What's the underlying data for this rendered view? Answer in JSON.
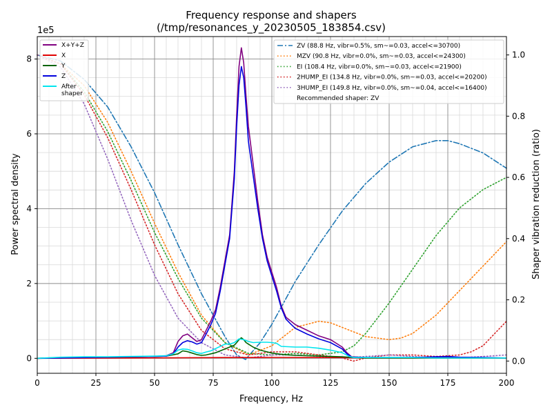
{
  "chart_data": {
    "type": "line",
    "title": "Frequency response and shapers",
    "subtitle": "(/tmp/resonances_y_20230505_183854.csv)",
    "xlabel": "Frequency, Hz",
    "ylabel": "Power spectral density",
    "y2label": "Shaper vibration reduction (ratio)",
    "y_offset_label": "1e5",
    "xlim": [
      0,
      200
    ],
    "ylim": [
      -0.4,
      8.6
    ],
    "y2lim": [
      -0.04,
      1.06
    ],
    "xticks": [
      0,
      25,
      50,
      75,
      100,
      125,
      150,
      175,
      200
    ],
    "yticks": [
      0,
      2,
      4,
      6,
      8
    ],
    "y2ticks": [
      0.0,
      0.2,
      0.4,
      0.6,
      0.8,
      1.0
    ],
    "grid": true,
    "legend_left_position": "top-left",
    "legend_right_position": "top-right",
    "psd_series": [
      {
        "name": "X+Y+Z",
        "color": "#800080",
        "x": [
          0,
          10,
          20,
          30,
          40,
          50,
          55,
          58,
          60,
          62,
          64,
          66,
          68,
          70,
          72,
          74,
          76,
          78,
          80,
          82,
          84,
          85,
          86,
          87,
          88,
          89,
          90,
          92,
          94,
          96,
          98,
          100,
          102,
          104,
          106,
          108,
          110,
          115,
          120,
          125,
          130,
          132,
          134,
          140,
          150,
          160,
          170,
          180,
          190,
          200
        ],
        "y": [
          0,
          0.01,
          0.02,
          0.03,
          0.04,
          0.05,
          0.07,
          0.15,
          0.45,
          0.6,
          0.65,
          0.55,
          0.45,
          0.5,
          0.75,
          1.0,
          1.3,
          1.9,
          2.6,
          3.3,
          5.0,
          6.5,
          7.8,
          8.3,
          7.9,
          7.0,
          6.2,
          5.2,
          4.2,
          3.3,
          2.7,
          2.3,
          1.9,
          1.4,
          1.1,
          1.0,
          0.9,
          0.75,
          0.6,
          0.5,
          0.3,
          0.15,
          0.04,
          0.02,
          0.02,
          0.02,
          0.02,
          0.02,
          0.01,
          0.01
        ]
      },
      {
        "name": "X",
        "color": "#e00000",
        "x": [
          0,
          20,
          40,
          60,
          80,
          100,
          120,
          130,
          140,
          160,
          180,
          200
        ],
        "y": [
          0,
          0.005,
          0.01,
          0.015,
          0.02,
          0.025,
          0.02,
          0.02,
          0.01,
          0.01,
          0.01,
          0.01
        ]
      },
      {
        "name": "Y",
        "color": "#006400",
        "x": [
          0,
          10,
          20,
          30,
          40,
          50,
          55,
          60,
          62,
          64,
          66,
          68,
          70,
          72,
          74,
          76,
          78,
          80,
          82,
          84,
          85,
          86,
          87,
          88,
          89,
          90,
          92,
          95,
          100,
          105,
          110,
          120,
          130,
          135,
          140,
          160,
          200
        ],
        "y": [
          0,
          0.02,
          0.03,
          0.03,
          0.04,
          0.05,
          0.06,
          0.12,
          0.2,
          0.18,
          0.14,
          0.1,
          0.08,
          0.09,
          0.12,
          0.15,
          0.2,
          0.25,
          0.3,
          0.35,
          0.42,
          0.5,
          0.55,
          0.5,
          0.42,
          0.38,
          0.3,
          0.22,
          0.14,
          0.1,
          0.08,
          0.06,
          0.04,
          0.02,
          0.01,
          0.01,
          0.01
        ]
      },
      {
        "name": "Z",
        "color": "#0000dd",
        "x": [
          0,
          10,
          20,
          30,
          40,
          50,
          55,
          58,
          60,
          62,
          64,
          66,
          68,
          70,
          72,
          74,
          76,
          78,
          80,
          82,
          84,
          85,
          86,
          87,
          88,
          89,
          90,
          92,
          94,
          96,
          98,
          100,
          102,
          104,
          106,
          108,
          110,
          115,
          120,
          125,
          130,
          132,
          134,
          140,
          150,
          160,
          170,
          175,
          180,
          190,
          200
        ],
        "y": [
          0,
          0.01,
          0.02,
          0.03,
          0.04,
          0.05,
          0.06,
          0.12,
          0.3,
          0.42,
          0.47,
          0.44,
          0.38,
          0.42,
          0.65,
          0.9,
          1.2,
          1.8,
          2.5,
          3.2,
          4.8,
          6.2,
          7.3,
          7.8,
          7.5,
          6.7,
          5.8,
          4.9,
          4.0,
          3.2,
          2.6,
          2.2,
          1.8,
          1.35,
          1.05,
          0.92,
          0.8,
          0.65,
          0.52,
          0.42,
          0.25,
          0.12,
          0.03,
          0.02,
          0.02,
          0.02,
          0.04,
          0.05,
          0.03,
          0.02,
          0.01
        ]
      },
      {
        "name": "After\nshaper",
        "color": "#00e5ee",
        "x": [
          0,
          10,
          20,
          30,
          40,
          50,
          55,
          58,
          60,
          62,
          64,
          66,
          68,
          70,
          72,
          74,
          76,
          78,
          80,
          82,
          84,
          86,
          88,
          90,
          92,
          95,
          98,
          100,
          102,
          104,
          110,
          115,
          120,
          125,
          130,
          133,
          135,
          140,
          150,
          160,
          170,
          180,
          190,
          200
        ],
        "y": [
          0,
          0.03,
          0.04,
          0.04,
          0.05,
          0.06,
          0.07,
          0.12,
          0.22,
          0.25,
          0.24,
          0.2,
          0.15,
          0.13,
          0.17,
          0.2,
          0.26,
          0.32,
          0.38,
          0.38,
          0.42,
          0.52,
          0.5,
          0.45,
          0.42,
          0.43,
          0.43,
          0.42,
          0.4,
          0.32,
          0.3,
          0.3,
          0.27,
          0.22,
          0.15,
          0.05,
          0.02,
          0.02,
          0.02,
          0.02,
          0.01,
          0.01,
          0.01,
          0.01
        ]
      }
    ],
    "shaper_series": [
      {
        "name": "ZV (88.8 Hz, vibr=0.5%, sm~=0.03, accel<=30700)",
        "color": "#1f77b4",
        "style": "dashdot",
        "x": [
          0,
          10,
          20,
          30,
          40,
          50,
          60,
          70,
          80,
          85,
          88.8,
          95,
          100,
          110,
          120,
          130,
          140,
          150,
          160,
          170,
          175,
          180,
          190,
          200
        ],
        "y": [
          1.0,
          0.98,
          0.92,
          0.83,
          0.7,
          0.55,
          0.38,
          0.22,
          0.08,
          0.02,
          0.005,
          0.06,
          0.12,
          0.26,
          0.38,
          0.49,
          0.58,
          0.65,
          0.7,
          0.72,
          0.72,
          0.71,
          0.68,
          0.63
        ]
      },
      {
        "name": "MZV (90.8 Hz, vibr=0.0%, sm~=0.03, accel<=24300)",
        "color": "#ff7f0e",
        "style": "dotted",
        "x": [
          0,
          10,
          20,
          30,
          40,
          50,
          60,
          70,
          80,
          90,
          100,
          110,
          120,
          125,
          130,
          140,
          150,
          155,
          160,
          170,
          180,
          190,
          200
        ],
        "y": [
          1.0,
          0.97,
          0.9,
          0.78,
          0.62,
          0.45,
          0.29,
          0.15,
          0.06,
          0.02,
          0.05,
          0.11,
          0.13,
          0.125,
          0.11,
          0.08,
          0.07,
          0.075,
          0.09,
          0.15,
          0.23,
          0.31,
          0.39
        ]
      },
      {
        "name": "EI (108.4 Hz, vibr=0.0%, sm~=0.03, accel<=21900)",
        "color": "#2ca02c",
        "style": "dotted",
        "x": [
          0,
          10,
          20,
          30,
          40,
          50,
          60,
          70,
          80,
          90,
          100,
          110,
          120,
          130,
          135,
          140,
          150,
          160,
          170,
          180,
          190,
          200
        ],
        "y": [
          1.0,
          0.97,
          0.88,
          0.75,
          0.59,
          0.42,
          0.27,
          0.14,
          0.06,
          0.025,
          0.02,
          0.025,
          0.02,
          0.03,
          0.05,
          0.09,
          0.19,
          0.3,
          0.41,
          0.5,
          0.56,
          0.6
        ]
      },
      {
        "name": "2HUMP_EI (134.8 Hz, vibr=0.0%, sm~=0.03, accel<=20200)",
        "color": "#d62728",
        "style": "dotted",
        "x": [
          0,
          10,
          20,
          30,
          40,
          50,
          60,
          70,
          80,
          90,
          100,
          110,
          120,
          130,
          134.8,
          140,
          150,
          160,
          170,
          180,
          185,
          190,
          195,
          200
        ],
        "y": [
          1.0,
          0.97,
          0.87,
          0.73,
          0.56,
          0.38,
          0.22,
          0.1,
          0.04,
          0.02,
          0.03,
          0.03,
          0.02,
          0.01,
          0.0,
          0.01,
          0.02,
          0.02,
          0.015,
          0.02,
          0.03,
          0.05,
          0.09,
          0.13
        ]
      },
      {
        "name": "3HUMP_EI (149.8 Hz, vibr=0.0%, sm~=0.04, accel<=16400)",
        "color": "#9467bd",
        "style": "dotted",
        "x": [
          0,
          10,
          20,
          30,
          40,
          50,
          60,
          70,
          80,
          90,
          100,
          110,
          120,
          130,
          140,
          150,
          160,
          170,
          180,
          190,
          200
        ],
        "y": [
          1.0,
          0.96,
          0.84,
          0.66,
          0.46,
          0.28,
          0.14,
          0.06,
          0.02,
          0.01,
          0.02,
          0.02,
          0.015,
          0.01,
          0.015,
          0.02,
          0.015,
          0.01,
          0.01,
          0.015,
          0.02
        ]
      }
    ],
    "recommended_label": "Recommended shaper: ZV"
  }
}
